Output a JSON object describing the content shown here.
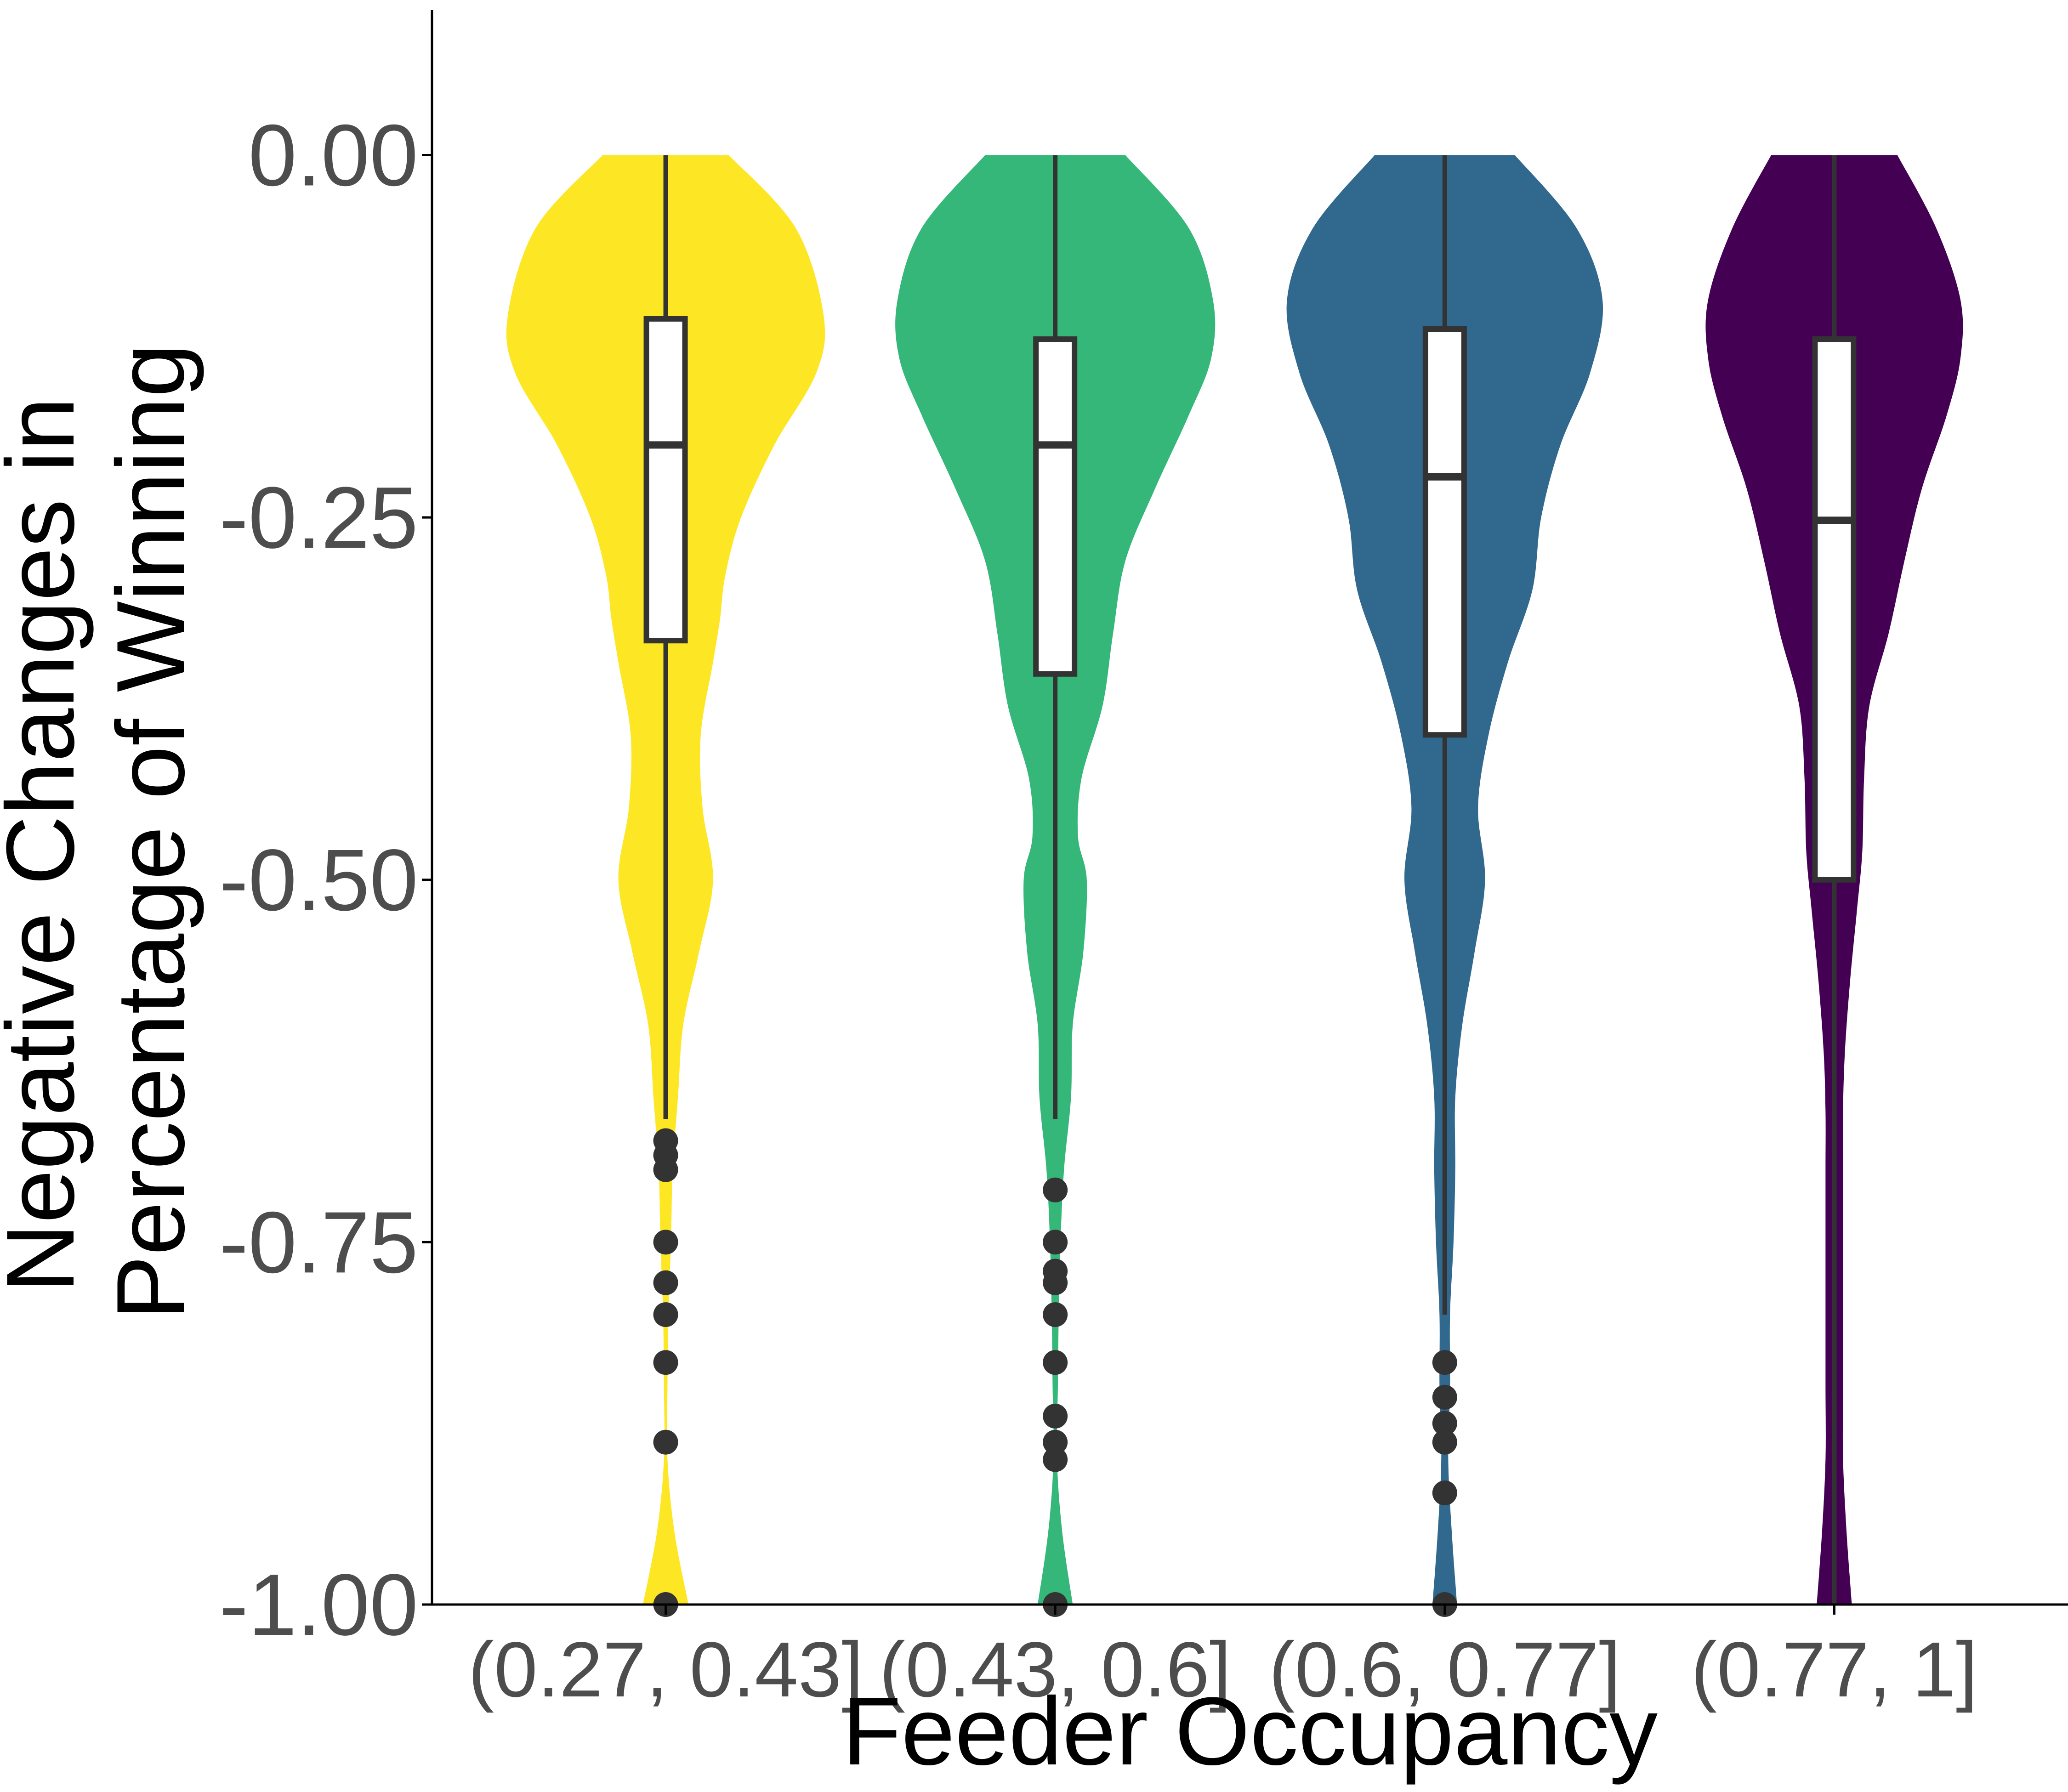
{
  "chart_data": {
    "type": "violin",
    "xlabel": "Feeder Occupancy",
    "ylabel_lines": [
      "Negative Changes in",
      "Percentage of Winning"
    ],
    "ylim": [
      -1.0,
      0.1
    ],
    "yticks": [
      0.0,
      -0.25,
      -0.5,
      -0.75,
      -1.0
    ],
    "ytick_labels": [
      "0.00",
      "-0.25",
      "-0.50",
      "-0.75",
      "-1.00"
    ],
    "grid": false,
    "legend": "none",
    "categories": [
      "(0.27, 0.43]",
      "(0.43, 0.6]",
      "(0.6, 0.77]",
      "(0.77, 1]"
    ],
    "series": [
      {
        "category": "(0.27, 0.43]",
        "color": "#FDE725",
        "box": {
          "q1": -0.335,
          "median": -0.2,
          "q3": -0.113,
          "whisker_low": -0.665,
          "whisker_high": 0.0
        },
        "outliers": [
          -0.68,
          -0.69,
          -0.7,
          -0.75,
          -0.778,
          -0.8,
          -0.833,
          -0.888,
          -1.0
        ],
        "density_profile": [
          [
            0.0,
            0.36
          ],
          [
            -0.05,
            0.74
          ],
          [
            -0.11,
            0.9
          ],
          [
            -0.15,
            0.86
          ],
          [
            -0.2,
            0.62
          ],
          [
            -0.25,
            0.43
          ],
          [
            -0.29,
            0.34
          ],
          [
            -0.32,
            0.31
          ],
          [
            -0.35,
            0.27
          ],
          [
            -0.4,
            0.2
          ],
          [
            -0.45,
            0.21
          ],
          [
            -0.5,
            0.27
          ],
          [
            -0.55,
            0.19
          ],
          [
            -0.6,
            0.1
          ],
          [
            -0.65,
            0.07
          ],
          [
            -0.7,
            0.04
          ],
          [
            -0.75,
            0.03
          ],
          [
            -0.8,
            0.015
          ],
          [
            -0.85,
            0.01
          ],
          [
            -0.9,
            0.01
          ],
          [
            -0.95,
            0.05
          ],
          [
            -1.0,
            0.13
          ]
        ]
      },
      {
        "category": "(0.43, 0.6]",
        "color": "#35B779",
        "box": {
          "q1": -0.358,
          "median": -0.2,
          "q3": -0.127,
          "whisker_low": -0.665,
          "whisker_high": 0.0
        },
        "outliers": [
          -0.714,
          -0.75,
          -0.77,
          -0.778,
          -0.8,
          -0.833,
          -0.87,
          -0.888,
          -0.9,
          -1.0
        ],
        "density_profile": [
          [
            0.0,
            0.4
          ],
          [
            -0.05,
            0.76
          ],
          [
            -0.1,
            0.9
          ],
          [
            -0.14,
            0.89
          ],
          [
            -0.18,
            0.76
          ],
          [
            -0.23,
            0.57
          ],
          [
            -0.28,
            0.4
          ],
          [
            -0.33,
            0.33
          ],
          [
            -0.38,
            0.27
          ],
          [
            -0.43,
            0.15
          ],
          [
            -0.47,
            0.13
          ],
          [
            -0.5,
            0.18
          ],
          [
            -0.55,
            0.16
          ],
          [
            -0.6,
            0.1
          ],
          [
            -0.65,
            0.09
          ],
          [
            -0.7,
            0.05
          ],
          [
            -0.75,
            0.03
          ],
          [
            -0.8,
            0.02
          ],
          [
            -0.85,
            0.015
          ],
          [
            -0.9,
            0.01
          ],
          [
            -0.95,
            0.04
          ],
          [
            -1.0,
            0.1
          ]
        ]
      },
      {
        "category": "(0.6, 0.77]",
        "color": "#31688E",
        "box": {
          "q1": -0.4,
          "median": -0.222,
          "q3": -0.12,
          "whisker_low": -0.8,
          "whisker_high": 0.0
        },
        "outliers": [
          -0.833,
          -0.857,
          -0.875,
          -0.888,
          -0.923,
          -1.0
        ],
        "density_profile": [
          [
            0.0,
            0.4
          ],
          [
            -0.05,
            0.75
          ],
          [
            -0.1,
            0.9
          ],
          [
            -0.15,
            0.83
          ],
          [
            -0.2,
            0.66
          ],
          [
            -0.25,
            0.55
          ],
          [
            -0.3,
            0.5
          ],
          [
            -0.35,
            0.36
          ],
          [
            -0.4,
            0.25
          ],
          [
            -0.45,
            0.19
          ],
          [
            -0.5,
            0.23
          ],
          [
            -0.55,
            0.17
          ],
          [
            -0.6,
            0.1
          ],
          [
            -0.65,
            0.06
          ],
          [
            -0.7,
            0.06
          ],
          [
            -0.75,
            0.05
          ],
          [
            -0.8,
            0.03
          ],
          [
            -0.85,
            0.03
          ],
          [
            -0.9,
            0.02
          ],
          [
            -0.95,
            0.04
          ],
          [
            -1.0,
            0.07
          ]
        ]
      },
      {
        "category": "(0.77, 1]",
        "color": "#440154",
        "box": {
          "q1": -0.5,
          "median": -0.252,
          "q3": -0.127,
          "whisker_low": -1.0,
          "whisker_high": 0.0
        },
        "outliers": [],
        "density_profile": [
          [
            0.0,
            0.36
          ],
          [
            -0.05,
            0.58
          ],
          [
            -0.1,
            0.72
          ],
          [
            -0.14,
            0.72
          ],
          [
            -0.18,
            0.64
          ],
          [
            -0.23,
            0.5
          ],
          [
            -0.28,
            0.4
          ],
          [
            -0.33,
            0.31
          ],
          [
            -0.38,
            0.2
          ],
          [
            -0.43,
            0.17
          ],
          [
            -0.48,
            0.16
          ],
          [
            -0.52,
            0.13
          ],
          [
            -0.57,
            0.09
          ],
          [
            -0.62,
            0.06
          ],
          [
            -0.66,
            0.05
          ],
          [
            -0.7,
            0.05
          ],
          [
            -0.75,
            0.05
          ],
          [
            -0.8,
            0.05
          ],
          [
            -0.85,
            0.05
          ],
          [
            -0.9,
            0.05
          ],
          [
            -0.95,
            0.07
          ],
          [
            -1.0,
            0.1
          ]
        ]
      }
    ]
  }
}
